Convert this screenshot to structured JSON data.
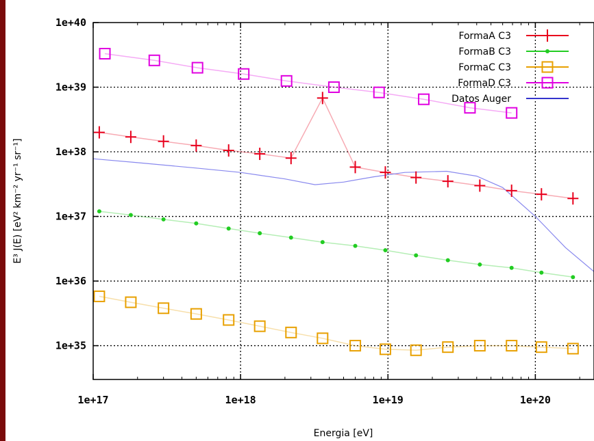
{
  "chart_data": {
    "type": "scatter",
    "xscale": "log",
    "yscale": "log",
    "xlim": [
      1e+17,
      2.5e+20
    ],
    "ylim": [
      3e+34,
      1e+40
    ],
    "xlabel": "Energia [eV]",
    "ylabel": "E³ J(E)  [eV² km⁻² yr⁻¹ sr⁻¹]",
    "xticks": [
      {
        "value": 1e+17,
        "label": "1e+17"
      },
      {
        "value": 1e+18,
        "label": "1e+18"
      },
      {
        "value": 1e+19,
        "label": "1e+19"
      },
      {
        "value": 1e+20,
        "label": "1e+20"
      }
    ],
    "yticks": [
      {
        "value": 1e+35,
        "label": "1e+35"
      },
      {
        "value": 1e+36,
        "label": "1e+36"
      },
      {
        "value": 1e+37,
        "label": "1e+37"
      },
      {
        "value": 1e+38,
        "label": "1e+38"
      },
      {
        "value": 1e+39,
        "label": "1e+39"
      },
      {
        "value": 1e+40,
        "label": "1e+40"
      }
    ],
    "grid": true,
    "legend_position": "top-right",
    "series": [
      {
        "name": "FormaA C3",
        "color": "#e8001c",
        "marker": "plus",
        "x": [
          1.1e+17,
          1.8e+17,
          3e+17,
          5e+17,
          8.3e+17,
          1.35e+18,
          2.2e+18,
          3.6e+18,
          6e+18,
          9.6e+18,
          1.55e+19,
          2.55e+19,
          4.2e+19,
          6.9e+19,
          1.1e+20,
          1.8e+20
        ],
        "y": [
          2e+38,
          1.7e+38,
          1.45e+38,
          1.25e+38,
          1.05e+38,
          9.3e+37,
          8e+37,
          6.8e+38,
          5.8e+37,
          4.8e+37,
          4e+37,
          3.5e+37,
          3e+37,
          2.5e+37,
          2.2e+37,
          1.9e+37
        ]
      },
      {
        "name": "FormaB C3",
        "color": "#22cc22",
        "marker": "dot",
        "x": [
          1.1e+17,
          1.8e+17,
          3e+17,
          5e+17,
          8.3e+17,
          1.35e+18,
          2.2e+18,
          3.6e+18,
          6e+18,
          9.6e+18,
          1.55e+19,
          2.55e+19,
          4.2e+19,
          6.9e+19,
          1.1e+20,
          1.8e+20
        ],
        "y": [
          1.2e+37,
          1.05e+37,
          9e+36,
          7.8e+36,
          6.5e+36,
          5.5e+36,
          4.7e+36,
          4e+36,
          3.5e+36,
          3e+36,
          2.5e+36,
          2.1e+36,
          1.8e+36,
          1.6e+36,
          1.35e+36,
          1.15e+36
        ]
      },
      {
        "name": "FormaC C3",
        "color": "#e8a000",
        "marker": "square",
        "x": [
          1.1e+17,
          1.8e+17,
          3e+17,
          5e+17,
          8.3e+17,
          1.35e+18,
          2.2e+18,
          3.6e+18,
          6e+18,
          9.6e+18,
          1.55e+19,
          2.55e+19,
          4.2e+19,
          6.9e+19,
          1.1e+20,
          1.8e+20
        ],
        "y": [
          5.8e+35,
          4.7e+35,
          3.8e+35,
          3.1e+35,
          2.5e+35,
          2e+35,
          1.6e+35,
          1.3e+35,
          1e+35,
          8.8e+34,
          8.5e+34,
          9.5e+34,
          1e+35,
          1e+35,
          9.5e+34,
          9e+34
        ]
      },
      {
        "name": "FormaD C3",
        "color": "#e000e0",
        "marker": "square",
        "x": [
          1.2e+17,
          2.6e+17,
          5.1e+17,
          1.05e+18,
          2.05e+18,
          4.3e+18,
          8.7e+18,
          1.75e+19,
          3.6e+19,
          6.9e+19
        ],
        "y": [
          3.3e+39,
          2.6e+39,
          2e+39,
          1.6e+39,
          1.25e+39,
          1e+39,
          8.3e+38,
          6.5e+38,
          4.8e+38,
          4e+38
        ]
      },
      {
        "name": "Datos Auger",
        "color": "#3333cc",
        "marker": "line",
        "x": [
          1e+17,
          2e+17,
          5e+17,
          1e+18,
          2e+18,
          3.2e+18,
          5e+18,
          8e+18,
          1.3e+19,
          2.5e+19,
          4e+19,
          6e+19,
          1e+20,
          1.6e+20,
          2.5e+20
        ],
        "y": [
          7.8e+37,
          6.8e+37,
          5.6e+37,
          4.8e+37,
          3.8e+37,
          3.1e+37,
          3.4e+37,
          4.1e+37,
          4.8e+37,
          5e+37,
          4.2e+37,
          2.8e+37,
          1e+37,
          3.3e+36,
          1.4e+36
        ]
      }
    ]
  }
}
